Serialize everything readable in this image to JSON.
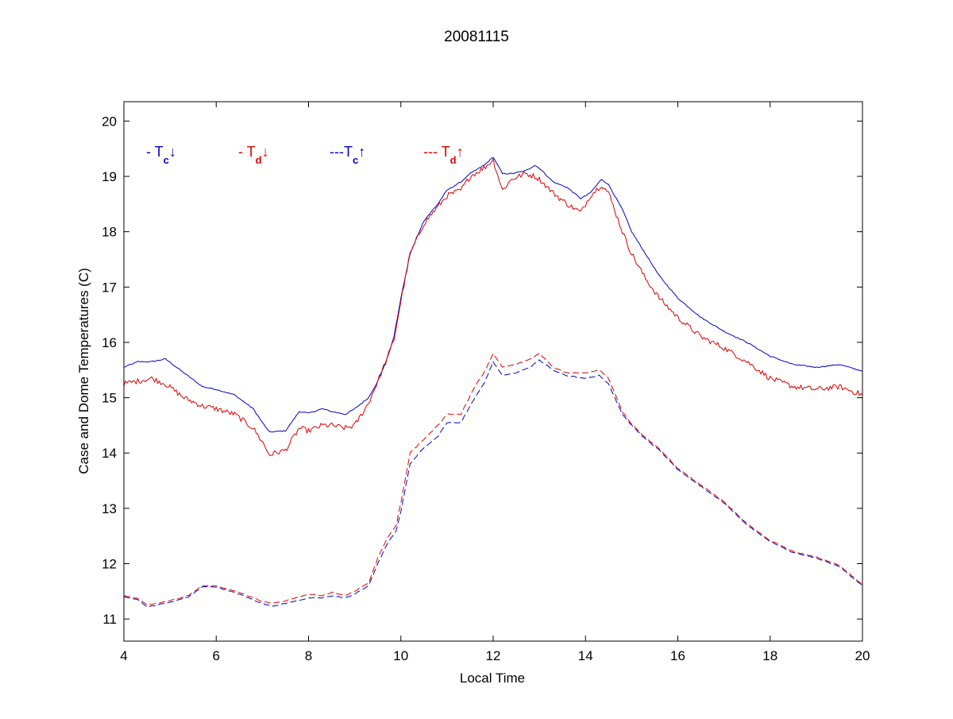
{
  "chart_data": {
    "type": "line",
    "title": "20081115",
    "xlabel": "Local Time",
    "ylabel": "Case and Dome Temperatures (C)",
    "xlim": [
      4,
      20
    ],
    "ylim": [
      10.6,
      20.35
    ],
    "x_ticks": [
      4,
      6,
      8,
      10,
      12,
      14,
      16,
      18,
      20
    ],
    "y_ticks": [
      11,
      12,
      13,
      14,
      15,
      16,
      17,
      18,
      19,
      20
    ],
    "grid": false,
    "legend": [
      {
        "prefix": "- T",
        "sub": "c",
        "arrow": "↓",
        "color": "#0000cc"
      },
      {
        "prefix": "- T",
        "sub": "d",
        "arrow": "↓",
        "color": "#dd0000"
      },
      {
        "prefix": "---T",
        "sub": "c",
        "arrow": "↑",
        "color": "#0000cc"
      },
      {
        "prefix": "--- T",
        "sub": "d",
        "arrow": "↑",
        "color": "#dd0000"
      }
    ],
    "series": [
      {
        "color": "#0000cc",
        "dash": "solid",
        "noise": 0.02,
        "x": [
          4.0,
          4.3,
          4.6,
          4.9,
          5.3,
          5.7,
          6.0,
          6.4,
          6.8,
          7.0,
          7.15,
          7.5,
          7.8,
          8.0,
          8.3,
          8.5,
          8.8,
          9.0,
          9.3,
          9.5,
          9.7,
          9.85,
          10.0,
          10.2,
          10.5,
          10.8,
          11.0,
          11.3,
          11.5,
          11.8,
          12.0,
          12.2,
          12.4,
          12.7,
          12.9,
          13.0,
          13.3,
          13.6,
          13.9,
          14.1,
          14.35,
          14.5,
          14.8,
          15.0,
          15.3,
          15.6,
          16.0,
          16.5,
          17.0,
          17.5,
          18.0,
          18.5,
          19.0,
          19.5,
          20.0
        ],
        "y": [
          15.55,
          15.65,
          15.65,
          15.7,
          15.45,
          15.2,
          15.15,
          15.05,
          14.8,
          14.55,
          14.38,
          14.4,
          14.75,
          14.72,
          14.8,
          14.75,
          14.7,
          14.8,
          15.0,
          15.3,
          15.7,
          16.1,
          16.8,
          17.6,
          18.2,
          18.5,
          18.75,
          18.9,
          19.05,
          19.2,
          19.35,
          19.05,
          19.05,
          19.1,
          19.2,
          19.15,
          18.9,
          18.8,
          18.6,
          18.7,
          18.95,
          18.85,
          18.4,
          18.0,
          17.6,
          17.2,
          16.8,
          16.45,
          16.2,
          16.0,
          15.75,
          15.6,
          15.55,
          15.6,
          15.48
        ]
      },
      {
        "color": "#dd0000",
        "dash": "solid",
        "noise": 0.1,
        "x": [
          4.0,
          4.3,
          4.6,
          4.9,
          5.3,
          5.7,
          6.0,
          6.4,
          6.8,
          7.0,
          7.15,
          7.5,
          7.8,
          8.0,
          8.3,
          8.5,
          8.8,
          9.0,
          9.3,
          9.5,
          9.7,
          9.85,
          10.0,
          10.2,
          10.5,
          10.8,
          11.0,
          11.3,
          11.5,
          11.8,
          12.0,
          12.2,
          12.4,
          12.7,
          12.9,
          13.0,
          13.3,
          13.6,
          13.9,
          14.1,
          14.35,
          14.5,
          14.8,
          15.0,
          15.3,
          15.6,
          16.0,
          16.5,
          17.0,
          17.5,
          18.0,
          18.5,
          19.0,
          19.5,
          20.0
        ],
        "y": [
          15.25,
          15.3,
          15.35,
          15.25,
          15.0,
          14.85,
          14.8,
          14.7,
          14.45,
          14.2,
          13.97,
          14.05,
          14.45,
          14.4,
          14.5,
          14.5,
          14.45,
          14.5,
          14.9,
          15.3,
          15.7,
          16.05,
          16.75,
          17.6,
          18.15,
          18.45,
          18.65,
          18.75,
          19.0,
          19.15,
          19.3,
          18.75,
          18.95,
          19.05,
          19.0,
          18.95,
          18.7,
          18.5,
          18.35,
          18.65,
          18.85,
          18.7,
          18.0,
          17.6,
          17.15,
          16.8,
          16.45,
          16.1,
          15.9,
          15.65,
          15.35,
          15.2,
          15.15,
          15.2,
          15.05
        ]
      },
      {
        "color": "#0000cc",
        "dash": "dashed",
        "noise": 0.015,
        "x": [
          4.0,
          4.3,
          4.5,
          5.0,
          5.4,
          5.7,
          6.0,
          6.5,
          7.0,
          7.2,
          7.5,
          8.0,
          8.3,
          8.5,
          8.8,
          9.0,
          9.3,
          9.5,
          9.7,
          9.9,
          10.0,
          10.2,
          10.5,
          10.8,
          11.0,
          11.3,
          11.6,
          11.8,
          12.0,
          12.2,
          12.5,
          12.8,
          13.0,
          13.3,
          13.6,
          14.0,
          14.3,
          14.5,
          14.8,
          15.0,
          15.3,
          15.6,
          16.0,
          16.5,
          17.0,
          17.5,
          18.0,
          18.5,
          19.0,
          19.5,
          20.0
        ],
        "y": [
          11.4,
          11.35,
          11.22,
          11.3,
          11.4,
          11.58,
          11.58,
          11.45,
          11.28,
          11.23,
          11.28,
          11.38,
          11.38,
          11.42,
          11.38,
          11.45,
          11.6,
          12.0,
          12.35,
          12.6,
          12.95,
          13.8,
          14.1,
          14.3,
          14.55,
          14.55,
          15.0,
          15.25,
          15.65,
          15.4,
          15.45,
          15.55,
          15.68,
          15.5,
          15.4,
          15.35,
          15.4,
          15.25,
          14.7,
          14.5,
          14.25,
          14.05,
          13.7,
          13.4,
          13.1,
          12.7,
          12.4,
          12.2,
          12.1,
          11.95,
          11.6
        ]
      },
      {
        "color": "#dd0000",
        "dash": "dashed",
        "noise": 0.015,
        "x": [
          4.0,
          4.3,
          4.5,
          5.0,
          5.4,
          5.7,
          6.0,
          6.5,
          7.0,
          7.2,
          7.5,
          8.0,
          8.3,
          8.5,
          8.8,
          9.0,
          9.3,
          9.5,
          9.7,
          9.9,
          10.0,
          10.2,
          10.5,
          10.8,
          11.0,
          11.3,
          11.6,
          11.8,
          12.0,
          12.2,
          12.5,
          12.8,
          13.0,
          13.3,
          13.6,
          14.0,
          14.3,
          14.5,
          14.8,
          15.0,
          15.3,
          15.6,
          16.0,
          16.5,
          17.0,
          17.5,
          18.0,
          18.5,
          19.0,
          19.5,
          20.0
        ],
        "y": [
          11.42,
          11.37,
          11.25,
          11.33,
          11.43,
          11.6,
          11.6,
          11.48,
          11.32,
          11.28,
          11.33,
          11.45,
          11.42,
          11.48,
          11.43,
          11.5,
          11.65,
          12.1,
          12.45,
          12.7,
          13.1,
          14.0,
          14.25,
          14.5,
          14.7,
          14.7,
          15.2,
          15.45,
          15.8,
          15.55,
          15.6,
          15.7,
          15.8,
          15.55,
          15.45,
          15.45,
          15.5,
          15.35,
          14.75,
          14.52,
          14.28,
          14.08,
          13.72,
          13.42,
          13.12,
          12.72,
          12.42,
          12.22,
          12.12,
          11.97,
          11.62
        ]
      }
    ]
  }
}
